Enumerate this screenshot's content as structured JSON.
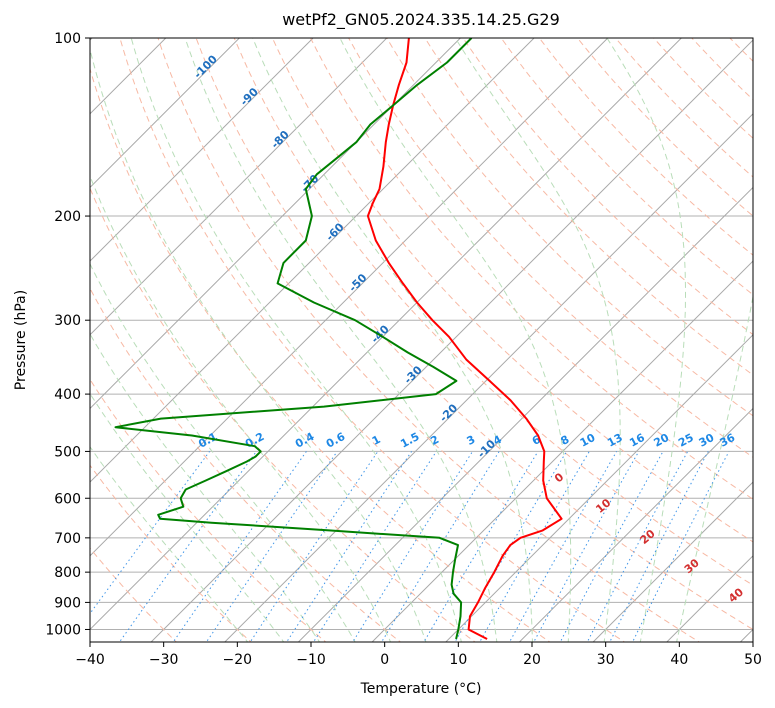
{
  "chart_data": {
    "type": "line",
    "title": "wetPf2_GN05.2024.335.14.25.G29",
    "xlabel": "Temperature (°C)",
    "ylabel": "Pressure (hPa)",
    "xlim": [
      -40,
      50
    ],
    "ylim": [
      1050,
      100
    ],
    "y_scale": "log",
    "x_ticks": [
      -40,
      -30,
      -20,
      -10,
      0,
      10,
      20,
      30,
      40,
      50
    ],
    "y_ticks": [
      1000,
      900,
      800,
      700,
      600,
      500,
      400,
      300,
      200,
      100
    ],
    "grid": true,
    "skew_t": true,
    "series": [
      {
        "role": "temperature",
        "color": "#ff0000",
        "pressure": [
          1038,
          1000,
          950,
          900,
          850,
          800,
          750,
          720,
          700,
          680,
          650,
          600,
          560,
          520,
          500,
          470,
          440,
          410,
          380,
          350,
          320,
          300,
          280,
          260,
          240,
          220,
          200,
          190,
          180,
          165,
          150,
          140,
          130,
          120,
          110,
          100
        ],
        "temp": [
          15.2,
          11.4,
          9.8,
          9.0,
          8.0,
          7.1,
          6.0,
          5.6,
          6.0,
          8.0,
          9.0,
          4.2,
          1.3,
          -1.2,
          -2.5,
          -5.5,
          -9.4,
          -14.0,
          -19.5,
          -25.5,
          -31.0,
          -35.5,
          -40.0,
          -44.5,
          -49.2,
          -54.0,
          -58.4,
          -59.5,
          -60.5,
          -63.0,
          -66.0,
          -68.0,
          -70.0,
          -72.0,
          -74.0,
          -77.0
        ]
      },
      {
        "role": "dewpoint",
        "color": "#008000",
        "pressure": [
          1038,
          1000,
          950,
          900,
          870,
          840,
          800,
          760,
          720,
          700,
          680,
          660,
          650,
          640,
          620,
          600,
          580,
          560,
          540,
          520,
          510,
          500,
          490,
          470,
          455,
          440,
          420,
          400,
          380,
          360,
          340,
          320,
          300,
          280,
          260,
          240,
          220,
          200,
          180,
          170,
          160,
          150,
          140,
          130,
          120,
          110,
          100
        ],
        "temp": [
          11.0,
          10.0,
          8.5,
          6.7,
          4.5,
          3.0,
          1.5,
          0.0,
          -1.5,
          -5.0,
          -21.0,
          -38.0,
          -45.5,
          -46.3,
          -44.0,
          -45.5,
          -46.0,
          -44.5,
          -43.0,
          -41.5,
          -41.0,
          -41.0,
          -42.5,
          -52.5,
          -64.0,
          -59.0,
          -38.5,
          -25.0,
          -24.0,
          -29.0,
          -34.5,
          -40.0,
          -46.0,
          -54.0,
          -61.5,
          -63.5,
          -63.5,
          -66.0,
          -70.5,
          -71.0,
          -70.5,
          -70.0,
          -70.5,
          -70.0,
          -69.5,
          -68.5,
          -68.5
        ]
      }
    ],
    "mixing_ratio_labels": [
      "0.1",
      "0.2",
      "0.4",
      "0.6",
      "1",
      "1.5",
      "2",
      "3",
      "4",
      "6",
      "8",
      "10",
      "13",
      "16",
      "20",
      "25",
      "30",
      "36"
    ],
    "isotherm_labels": [
      "-100",
      "-90",
      "-80",
      "-70",
      "-60",
      "-50",
      "-40",
      "-30",
      "-20",
      "-10"
    ],
    "moist_adiabat_labels": [
      "0",
      "10",
      "20",
      "30",
      "40"
    ]
  }
}
